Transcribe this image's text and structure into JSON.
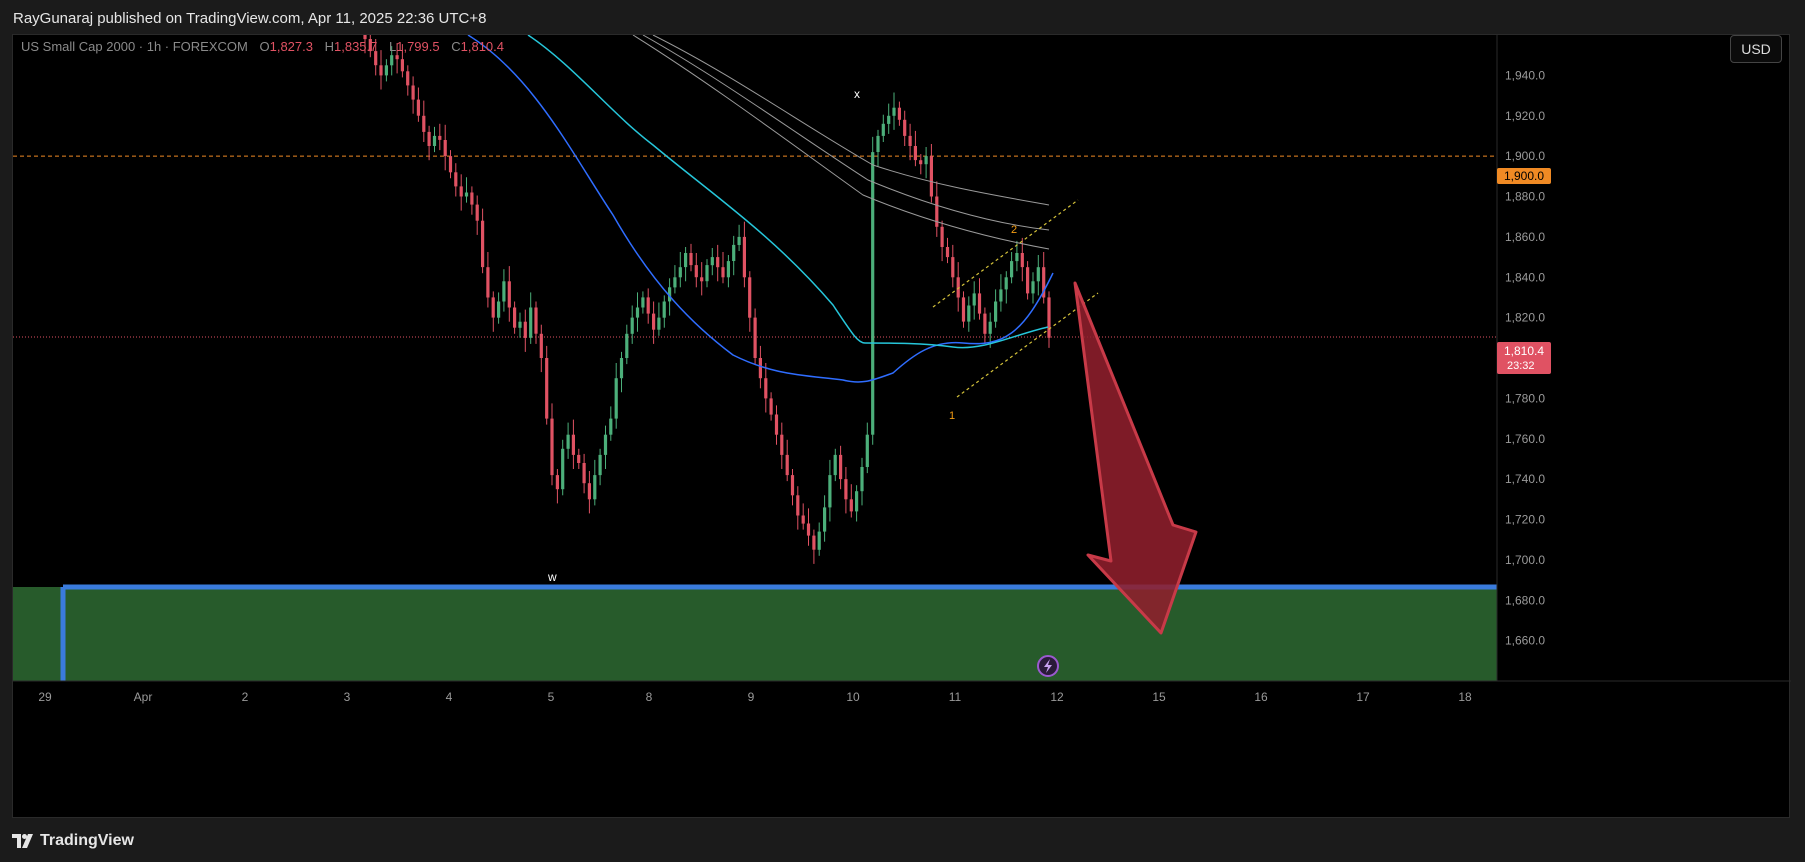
{
  "header": {
    "published": "RayGunaraj published on TradingView.com, Apr 11, 2025 22:36 UTC+8"
  },
  "legend": {
    "symbol": "US Small Cap 2000 · 1h · FOREXCOM",
    "o_label": "O",
    "o": "1,827.3",
    "h_label": "H",
    "h": "1,835.7",
    "l_label": "L",
    "l": "1,799.5",
    "c_label": "C",
    "c": "1,810.4"
  },
  "currency_button": "USD",
  "price_badges": {
    "level_1900": "1,900.0",
    "last": "1,810.4",
    "countdown": "23:32"
  },
  "wave_labels": {
    "w": "w",
    "x": "x",
    "one": "1",
    "two": "2"
  },
  "footer": {
    "brand": "TradingView"
  },
  "colors": {
    "up": "#4caf7a",
    "down": "#e05263",
    "ma_blue": "#2f6dff",
    "ma_cyan": "#26c6da",
    "channel": "#d4c23a",
    "zone_fill": "#275b2b",
    "zone_border": "#3a7bdc",
    "arrow": "#8f1f2c",
    "level_line": "#f08a24"
  },
  "chart_data": {
    "type": "candlestick",
    "symbol": "US Small Cap 2000",
    "timeframe": "1h",
    "ylim": [
      1640,
      1960
    ],
    "y_ticks": [
      1660,
      1680,
      1700,
      1720,
      1740,
      1760,
      1780,
      1800,
      1820,
      1840,
      1860,
      1880,
      1900,
      1920,
      1940
    ],
    "y_tick_labels": [
      "1,660.0",
      "1,680.0",
      "1,700.0",
      "1,720.0",
      "1,740.0",
      "1,760.0",
      "1,780.0",
      "1,800.0",
      "1,820.0",
      "1,840.0",
      "1,860.0",
      "1,880.0",
      "1,900.0",
      "1,920.0",
      "1,940.0"
    ],
    "x_ticks": [
      "29",
      "Apr",
      "2",
      "3",
      "4",
      "5",
      "8",
      "9",
      "10",
      "11",
      "12",
      "15",
      "16",
      "17",
      "18"
    ],
    "horizontal_levels": [
      1900.0,
      1810.4
    ],
    "support_zone": [
      1640,
      1688
    ],
    "last_price": 1810.4,
    "ohlc_last": {
      "open": 1827.3,
      "high": 1835.7,
      "low": 1799.5,
      "close": 1810.4
    },
    "closes": [
      1958,
      1952,
      1945,
      1940,
      1945,
      1950,
      1948,
      1942,
      1935,
      1928,
      1920,
      1912,
      1905,
      1910,
      1908,
      1900,
      1892,
      1885,
      1880,
      1882,
      1876,
      1868,
      1845,
      1830,
      1820,
      1828,
      1838,
      1825,
      1815,
      1818,
      1810,
      1825,
      1812,
      1800,
      1770,
      1742,
      1735,
      1755,
      1762,
      1752,
      1748,
      1738,
      1730,
      1742,
      1752,
      1762,
      1770,
      1790,
      1800,
      1812,
      1820,
      1825,
      1830,
      1822,
      1814,
      1820,
      1828,
      1835,
      1840,
      1845,
      1852,
      1846,
      1840,
      1838,
      1846,
      1850,
      1845,
      1840,
      1848,
      1856,
      1860,
      1840,
      1820,
      1800,
      1790,
      1780,
      1772,
      1762,
      1752,
      1742,
      1732,
      1722,
      1718,
      1712,
      1705,
      1714,
      1726,
      1742,
      1752,
      1740,
      1730,
      1724,
      1734,
      1746,
      1762,
      1902,
      1910,
      1916,
      1920,
      1924,
      1918,
      1910,
      1905,
      1898,
      1896,
      1900,
      1880,
      1865,
      1855,
      1850,
      1840,
      1830,
      1818,
      1826,
      1832,
      1822,
      1812,
      1818,
      1828,
      1834,
      1840,
      1848,
      1852,
      1845,
      1832,
      1838,
      1845,
      1830,
      1810
    ]
  }
}
